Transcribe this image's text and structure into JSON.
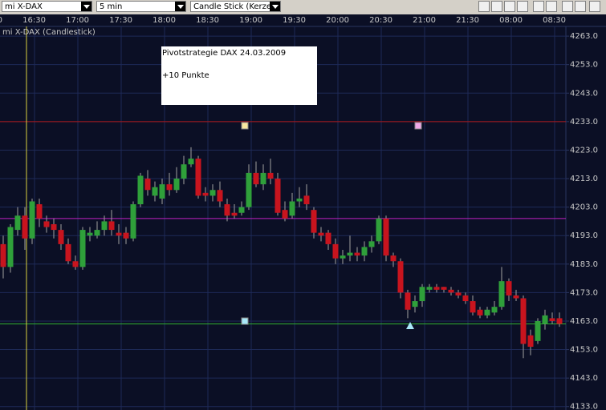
{
  "toolbar": {
    "symbol": "mi X-DAX",
    "interval": "5 min",
    "chart_type": "Candle Stick (Kerze"
  },
  "chart_data": {
    "type": "candlestick",
    "series_label": "mi X-DAX (Candlestick)",
    "annotation": {
      "title": "Pivotstrategie DAX 24.03.2009",
      "text": "+10 Punkte"
    },
    "x_labels": [
      "0",
      "16:30",
      "17:00",
      "17:30",
      "18:00",
      "18:30",
      "19:00",
      "19:30",
      "20:00",
      "20:30",
      "21:00",
      "21:30",
      "08:00",
      "08:30"
    ],
    "open": [
      4190,
      4182,
      4195,
      4200,
      4192,
      4204,
      4198,
      4197,
      4195,
      4190,
      4184,
      4182,
      4193,
      4193,
      4195,
      4198,
      4194,
      4194,
      4192,
      4204,
      4213,
      4207,
      4206,
      4211,
      4209,
      4213,
      4218,
      4220,
      4208,
      4207,
      4209,
      4204,
      4201,
      4201,
      4203,
      4215,
      4211,
      4215,
      4213,
      4202,
      4200,
      4205,
      4207,
      4202,
      4194,
      4194,
      4190,
      4185,
      4186,
      4187,
      4186,
      4189,
      4191,
      4199,
      4186,
      4184,
      4173,
      4168,
      4170,
      4174,
      4175,
      4175,
      4174,
      4173,
      4172,
      4170,
      4167,
      4165,
      4166,
      4168,
      4177,
      4172,
      4171,
      4158,
      4156,
      4162,
      4164,
      4164
    ],
    "high": [
      4193,
      4197,
      4203,
      4203,
      4206,
      4206,
      4200,
      4199,
      4197,
      4192,
      4186,
      4196,
      4196,
      4198,
      4200,
      4202,
      4197,
      4196,
      4205,
      4215,
      4216,
      4212,
      4213,
      4215,
      4217,
      4221,
      4224,
      4221,
      4210,
      4211,
      4212,
      4206,
      4204,
      4205,
      4218,
      4219,
      4218,
      4220,
      4215,
      4205,
      4208,
      4210,
      4211,
      4203,
      4196,
      4195,
      4192,
      4188,
      4193,
      4189,
      4191,
      4193,
      4200,
      4200,
      4187,
      4185,
      4174,
      4172,
      4176,
      4176,
      4176,
      4175,
      4175,
      4174,
      4173,
      4172,
      4168,
      4168,
      4170,
      4182,
      4178,
      4174,
      4172,
      4160,
      4164,
      4167,
      4166,
      4166
    ],
    "low": [
      4178,
      4180,
      4193,
      4188,
      4190,
      4196,
      4194,
      4192,
      4188,
      4183,
      4181,
      4181,
      4191,
      4192,
      4193,
      4193,
      4190,
      4190,
      4191,
      4203,
      4207,
      4205,
      4204,
      4207,
      4208,
      4211,
      4217,
      4206,
      4205,
      4205,
      4203,
      4198,
      4199,
      4200,
      4202,
      4210,
      4209,
      4211,
      4200,
      4198,
      4199,
      4203,
      4202,
      4192,
      4191,
      4188,
      4183,
      4183,
      4184,
      4184,
      4184,
      4187,
      4190,
      4184,
      4182,
      4171,
      4164,
      4166,
      4168,
      4173,
      4173,
      4173,
      4172,
      4171,
      4169,
      4165,
      4164,
      4164,
      4165,
      4167,
      4170,
      4170,
      4150,
      4151,
      4155,
      4160,
      4162,
      4161
    ],
    "close": [
      4182,
      4196,
      4200,
      4192,
      4205,
      4199,
      4196,
      4195,
      4190,
      4184,
      4182,
      4195,
      4194,
      4195,
      4198,
      4195,
      4193,
      4192,
      4204,
      4214,
      4209,
      4210,
      4211,
      4209,
      4213,
      4218,
      4220,
      4207,
      4207,
      4209,
      4205,
      4200,
      4200,
      4203,
      4215,
      4211,
      4215,
      4213,
      4201,
      4199,
      4205,
      4206,
      4204,
      4194,
      4193,
      4190,
      4185,
      4186,
      4187,
      4186,
      4189,
      4191,
      4199,
      4186,
      4184,
      4173,
      4167,
      4170,
      4175,
      4175,
      4174,
      4174,
      4173,
      4172,
      4170,
      4166,
      4165,
      4167,
      4168,
      4177,
      4172,
      4171,
      4155,
      4154,
      4163,
      4165,
      4163,
      4162
    ],
    "up_color": "#2fa03a",
    "down_color": "#c8141e",
    "wick_color": "#a0a0a0",
    "hlines": [
      {
        "value": 4233,
        "color": "#b01818"
      },
      {
        "value": 4199,
        "color": "#c020c0"
      },
      {
        "value": 4162,
        "color": "#30b030"
      }
    ],
    "ylim": [
      4131.8,
      4266.4
    ],
    "yticks": [
      {
        "value": 4263,
        "label": "4263.0"
      },
      {
        "value": 4253,
        "label": "4253.0"
      },
      {
        "value": 4243,
        "label": "4243.0"
      },
      {
        "value": 4233,
        "label": "4233.0"
      },
      {
        "value": 4223,
        "label": "4223.0"
      },
      {
        "value": 4213,
        "label": "4213.0"
      },
      {
        "value": 4203,
        "label": "4203.0"
      },
      {
        "value": 4193,
        "label": "4193.0"
      },
      {
        "value": 4183,
        "label": "4183.0"
      },
      {
        "value": 4173,
        "label": "4173.0"
      },
      {
        "value": 4163,
        "label": "4163.0"
      },
      {
        "value": 4153,
        "label": "4153.0"
      },
      {
        "value": 4143,
        "label": "4143.0"
      },
      {
        "value": 4133,
        "label": "4133.0"
      }
    ],
    "grid": true
  }
}
